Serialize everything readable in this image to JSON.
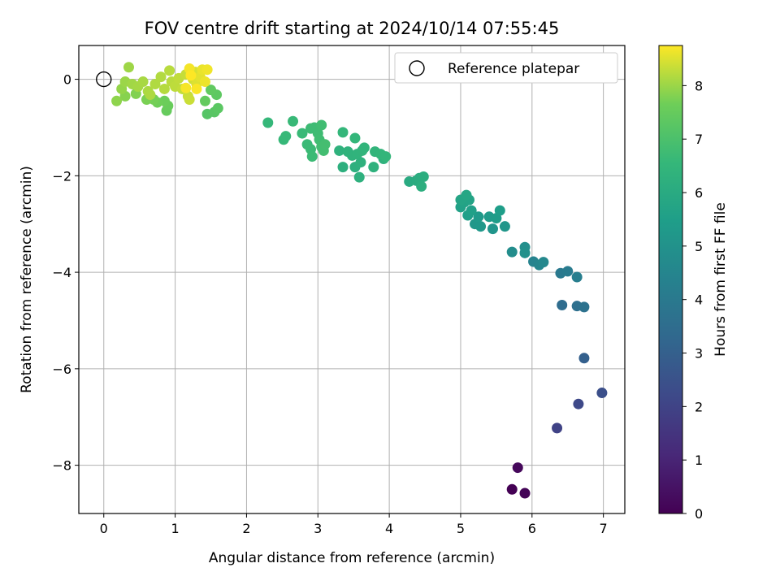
{
  "chart_data": {
    "type": "scatter",
    "title": "FOV centre drift starting at 2024/10/14 07:55:45",
    "xlabel": "Angular distance from reference (arcmin)",
    "ylabel": "Rotation from reference (arcmin)",
    "xlim": [
      -0.35,
      7.3
    ],
    "ylim": [
      -9.0,
      0.7
    ],
    "xticks": [
      0,
      1,
      2,
      3,
      4,
      5,
      6,
      7
    ],
    "yticks": [
      0,
      -2,
      -4,
      -6,
      -8
    ],
    "grid": true,
    "legend": {
      "position": "top-right",
      "entries": [
        "Reference platepar"
      ]
    },
    "reference_point": {
      "x": 0,
      "y": 0
    },
    "colorbar": {
      "label": "Hours from first FF file",
      "range": [
        0,
        8.75
      ],
      "ticks": [
        0,
        1,
        2,
        3,
        4,
        5,
        6,
        7,
        8
      ],
      "colormap": "viridis"
    },
    "points": [
      {
        "x": 5.72,
        "y": -8.5,
        "t": 0.0
      },
      {
        "x": 5.9,
        "y": -8.58,
        "t": 0.1
      },
      {
        "x": 5.8,
        "y": -8.05,
        "t": 0.2
      },
      {
        "x": 6.35,
        "y": -7.23,
        "t": 2.0
      },
      {
        "x": 6.65,
        "y": -6.73,
        "t": 2.2
      },
      {
        "x": 6.98,
        "y": -6.5,
        "t": 2.4
      },
      {
        "x": 6.73,
        "y": -5.78,
        "t": 3.0
      },
      {
        "x": 6.42,
        "y": -4.68,
        "t": 3.5
      },
      {
        "x": 6.63,
        "y": -4.7,
        "t": 3.6
      },
      {
        "x": 6.73,
        "y": -4.72,
        "t": 3.7
      },
      {
        "x": 6.4,
        "y": -4.02,
        "t": 4.0
      },
      {
        "x": 6.5,
        "y": -3.98,
        "t": 4.1
      },
      {
        "x": 6.63,
        "y": -4.1,
        "t": 4.2
      },
      {
        "x": 6.02,
        "y": -3.78,
        "t": 4.4
      },
      {
        "x": 6.1,
        "y": -3.85,
        "t": 4.5
      },
      {
        "x": 6.16,
        "y": -3.79,
        "t": 4.6
      },
      {
        "x": 5.72,
        "y": -3.58,
        "t": 4.8
      },
      {
        "x": 5.9,
        "y": -3.48,
        "t": 4.9
      },
      {
        "x": 5.9,
        "y": -3.6,
        "t": 4.95
      },
      {
        "x": 5.45,
        "y": -3.1,
        "t": 5.1
      },
      {
        "x": 5.62,
        "y": -3.05,
        "t": 5.15
      },
      {
        "x": 5.2,
        "y": -3.0,
        "t": 5.2
      },
      {
        "x": 5.28,
        "y": -3.05,
        "t": 5.25
      },
      {
        "x": 5.25,
        "y": -2.85,
        "t": 5.3
      },
      {
        "x": 5.4,
        "y": -2.85,
        "t": 5.35
      },
      {
        "x": 5.5,
        "y": -2.88,
        "t": 5.4
      },
      {
        "x": 5.55,
        "y": -2.72,
        "t": 5.45
      },
      {
        "x": 5.1,
        "y": -2.82,
        "t": 5.5
      },
      {
        "x": 5.15,
        "y": -2.72,
        "t": 5.55
      },
      {
        "x": 5.0,
        "y": -2.65,
        "t": 5.6
      },
      {
        "x": 5.05,
        "y": -2.55,
        "t": 5.65
      },
      {
        "x": 5.12,
        "y": -2.5,
        "t": 5.7
      },
      {
        "x": 5.0,
        "y": -2.5,
        "t": 5.75
      },
      {
        "x": 5.08,
        "y": -2.4,
        "t": 5.8
      },
      {
        "x": 4.28,
        "y": -2.12,
        "t": 6.0
      },
      {
        "x": 4.38,
        "y": -2.1,
        "t": 6.05
      },
      {
        "x": 4.42,
        "y": -2.05,
        "t": 6.1
      },
      {
        "x": 4.48,
        "y": -2.02,
        "t": 6.12
      },
      {
        "x": 4.45,
        "y": -2.22,
        "t": 6.15
      },
      {
        "x": 3.35,
        "y": -1.82,
        "t": 6.2
      },
      {
        "x": 3.52,
        "y": -1.82,
        "t": 6.22
      },
      {
        "x": 3.58,
        "y": -2.03,
        "t": 6.24
      },
      {
        "x": 3.6,
        "y": -1.72,
        "t": 6.26
      },
      {
        "x": 3.78,
        "y": -1.82,
        "t": 6.28
      },
      {
        "x": 3.92,
        "y": -1.65,
        "t": 6.3
      },
      {
        "x": 3.3,
        "y": -1.48,
        "t": 6.32
      },
      {
        "x": 3.42,
        "y": -1.5,
        "t": 6.34
      },
      {
        "x": 3.48,
        "y": -1.58,
        "t": 6.36
      },
      {
        "x": 3.55,
        "y": -1.55,
        "t": 6.38
      },
      {
        "x": 3.62,
        "y": -1.48,
        "t": 6.4
      },
      {
        "x": 3.65,
        "y": -1.42,
        "t": 6.42
      },
      {
        "x": 3.8,
        "y": -1.5,
        "t": 6.44
      },
      {
        "x": 3.88,
        "y": -1.55,
        "t": 6.46
      },
      {
        "x": 3.95,
        "y": -1.6,
        "t": 6.48
      },
      {
        "x": 3.35,
        "y": -1.1,
        "t": 6.5
      },
      {
        "x": 3.52,
        "y": -1.22,
        "t": 6.52
      },
      {
        "x": 2.3,
        "y": -0.9,
        "t": 6.55
      },
      {
        "x": 2.52,
        "y": -1.25,
        "t": 6.58
      },
      {
        "x": 2.55,
        "y": -1.18,
        "t": 6.6
      },
      {
        "x": 2.65,
        "y": -0.87,
        "t": 6.62
      },
      {
        "x": 2.78,
        "y": -1.12,
        "t": 6.64
      },
      {
        "x": 2.85,
        "y": -1.35,
        "t": 6.66
      },
      {
        "x": 2.9,
        "y": -1.45,
        "t": 6.68
      },
      {
        "x": 2.92,
        "y": -1.6,
        "t": 6.7
      },
      {
        "x": 2.9,
        "y": -1.02,
        "t": 6.72
      },
      {
        "x": 2.95,
        "y": -1.0,
        "t": 6.74
      },
      {
        "x": 3.0,
        "y": -1.12,
        "t": 6.76
      },
      {
        "x": 3.02,
        "y": -1.25,
        "t": 6.78
      },
      {
        "x": 3.05,
        "y": -0.95,
        "t": 6.8
      },
      {
        "x": 3.05,
        "y": -1.4,
        "t": 6.82
      },
      {
        "x": 3.08,
        "y": -1.48,
        "t": 6.84
      },
      {
        "x": 3.1,
        "y": -1.35,
        "t": 6.86
      },
      {
        "x": 1.45,
        "y": -0.72,
        "t": 7.2
      },
      {
        "x": 1.55,
        "y": -0.68,
        "t": 7.25
      },
      {
        "x": 1.6,
        "y": -0.6,
        "t": 7.3
      },
      {
        "x": 1.58,
        "y": -0.32,
        "t": 7.35
      },
      {
        "x": 1.5,
        "y": -0.22,
        "t": 7.4
      },
      {
        "x": 1.42,
        "y": -0.45,
        "t": 7.45
      },
      {
        "x": 0.88,
        "y": -0.65,
        "t": 7.5
      },
      {
        "x": 0.9,
        "y": -0.55,
        "t": 7.55
      },
      {
        "x": 0.85,
        "y": -0.45,
        "t": 7.6
      },
      {
        "x": 0.75,
        "y": -0.48,
        "t": 7.65
      },
      {
        "x": 0.7,
        "y": -0.42,
        "t": 7.7
      },
      {
        "x": 0.6,
        "y": -0.42,
        "t": 7.75
      },
      {
        "x": 0.45,
        "y": -0.3,
        "t": 7.8
      },
      {
        "x": 0.3,
        "y": -0.35,
        "t": 7.85
      },
      {
        "x": 0.18,
        "y": -0.45,
        "t": 7.9
      },
      {
        "x": 0.25,
        "y": -0.2,
        "t": 7.95
      },
      {
        "x": 0.3,
        "y": -0.05,
        "t": 8.0
      },
      {
        "x": 0.35,
        "y": 0.25,
        "t": 8.02
      },
      {
        "x": 0.4,
        "y": -0.1,
        "t": 8.05
      },
      {
        "x": 0.48,
        "y": -0.15,
        "t": 8.08
      },
      {
        "x": 0.55,
        "y": -0.05,
        "t": 8.1
      },
      {
        "x": 0.62,
        "y": -0.25,
        "t": 8.12
      },
      {
        "x": 0.65,
        "y": -0.32,
        "t": 8.14
      },
      {
        "x": 0.72,
        "y": -0.1,
        "t": 8.16
      },
      {
        "x": 0.8,
        "y": 0.05,
        "t": 8.18
      },
      {
        "x": 0.85,
        "y": -0.2,
        "t": 8.2
      },
      {
        "x": 0.92,
        "y": 0.18,
        "t": 8.22
      },
      {
        "x": 0.95,
        "y": -0.05,
        "t": 8.24
      },
      {
        "x": 1.0,
        "y": -0.15,
        "t": 8.26
      },
      {
        "x": 1.05,
        "y": 0.02,
        "t": 8.28
      },
      {
        "x": 1.1,
        "y": -0.2,
        "t": 8.3
      },
      {
        "x": 1.15,
        "y": 0.1,
        "t": 8.32
      },
      {
        "x": 1.18,
        "y": -0.35,
        "t": 8.34
      },
      {
        "x": 1.2,
        "y": -0.42,
        "t": 8.36
      },
      {
        "x": 1.25,
        "y": 0.0,
        "t": 8.4
      },
      {
        "x": 1.28,
        "y": 0.15,
        "t": 8.45
      },
      {
        "x": 1.3,
        "y": -0.1,
        "t": 8.5
      },
      {
        "x": 1.35,
        "y": 0.05,
        "t": 8.55
      },
      {
        "x": 1.38,
        "y": 0.2,
        "t": 8.6
      },
      {
        "x": 1.42,
        "y": -0.05,
        "t": 8.62
      },
      {
        "x": 1.45,
        "y": 0.2,
        "t": 8.65
      },
      {
        "x": 1.2,
        "y": 0.22,
        "t": 8.68
      },
      {
        "x": 1.15,
        "y": -0.18,
        "t": 8.7
      },
      {
        "x": 1.3,
        "y": -0.2,
        "t": 8.72
      },
      {
        "x": 1.22,
        "y": 0.08,
        "t": 8.75
      }
    ]
  }
}
